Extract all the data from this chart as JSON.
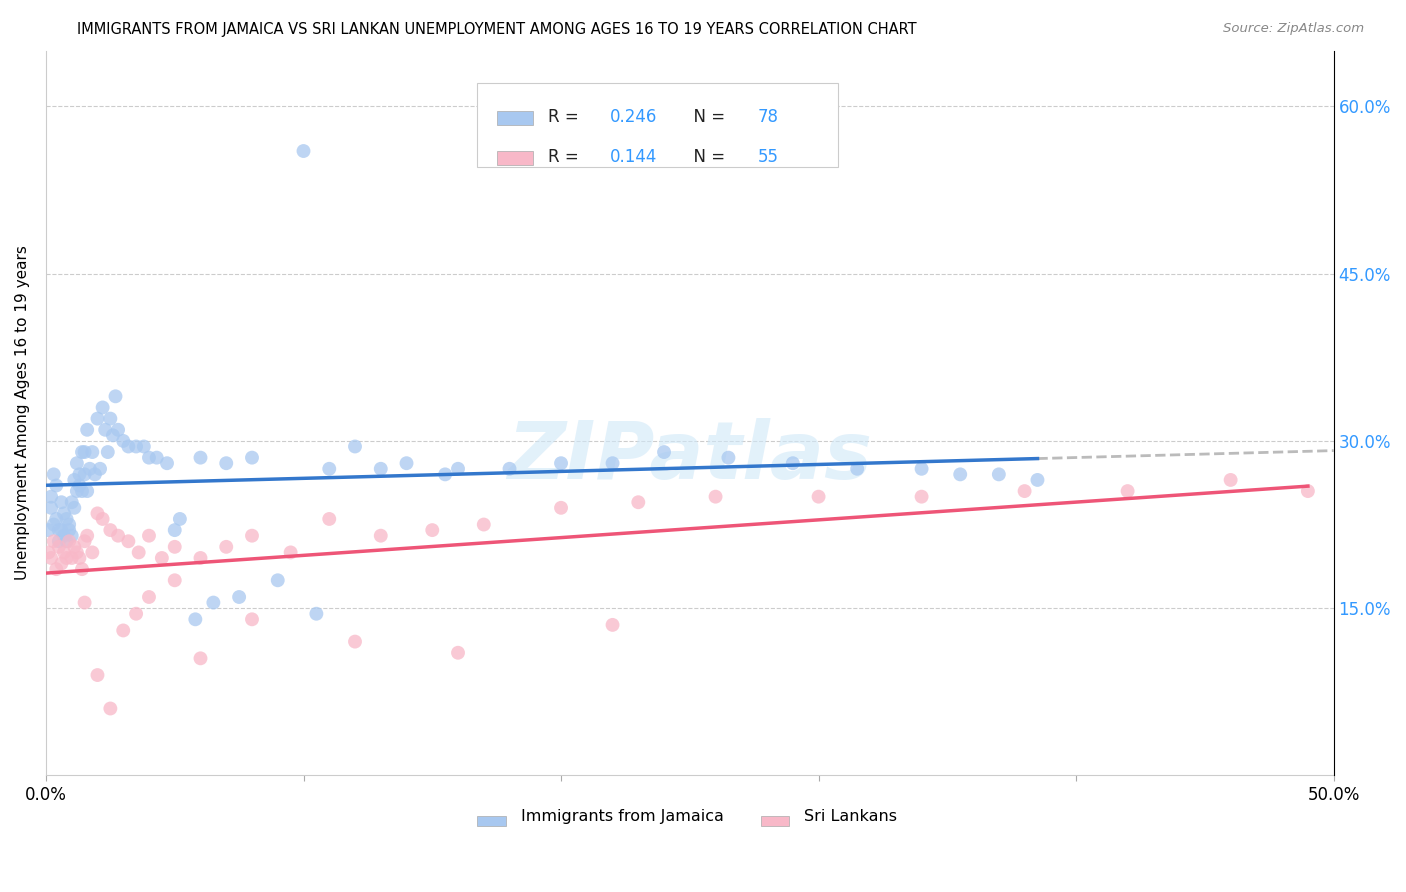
{
  "title": "IMMIGRANTS FROM JAMAICA VS SRI LANKAN UNEMPLOYMENT AMONG AGES 16 TO 19 YEARS CORRELATION CHART",
  "source": "Source: ZipAtlas.com",
  "ylabel": "Unemployment Among Ages 16 to 19 years",
  "xlim": [
    0.0,
    0.5
  ],
  "ylim": [
    0.0,
    0.65
  ],
  "jamaica_color": "#a8c8f0",
  "srilanka_color": "#f8b8c8",
  "jamaica_line_color": "#3377cc",
  "srilanka_line_color": "#ee5577",
  "regression_ext_color": "#bbbbbb",
  "legend_jamaica": "Immigrants from Jamaica",
  "legend_srilanka": "Sri Lankans",
  "watermark": "ZIPatlas",
  "jamaica_x": [
    0.001,
    0.002,
    0.002,
    0.003,
    0.003,
    0.004,
    0.004,
    0.005,
    0.005,
    0.006,
    0.006,
    0.007,
    0.007,
    0.008,
    0.008,
    0.009,
    0.009,
    0.01,
    0.01,
    0.011,
    0.011,
    0.012,
    0.012,
    0.013,
    0.013,
    0.014,
    0.014,
    0.015,
    0.015,
    0.016,
    0.016,
    0.017,
    0.018,
    0.019,
    0.02,
    0.021,
    0.022,
    0.023,
    0.024,
    0.025,
    0.026,
    0.027,
    0.028,
    0.03,
    0.032,
    0.035,
    0.038,
    0.04,
    0.043,
    0.047,
    0.052,
    0.058,
    0.065,
    0.075,
    0.09,
    0.105,
    0.12,
    0.14,
    0.16,
    0.18,
    0.2,
    0.22,
    0.24,
    0.265,
    0.29,
    0.315,
    0.34,
    0.355,
    0.37,
    0.385,
    0.1,
    0.11,
    0.13,
    0.155,
    0.05,
    0.06,
    0.07,
    0.08
  ],
  "jamaica_y": [
    0.22,
    0.25,
    0.24,
    0.27,
    0.225,
    0.26,
    0.23,
    0.22,
    0.21,
    0.245,
    0.22,
    0.235,
    0.215,
    0.23,
    0.21,
    0.225,
    0.22,
    0.245,
    0.215,
    0.265,
    0.24,
    0.28,
    0.255,
    0.27,
    0.26,
    0.29,
    0.255,
    0.29,
    0.27,
    0.31,
    0.255,
    0.275,
    0.29,
    0.27,
    0.32,
    0.275,
    0.33,
    0.31,
    0.29,
    0.32,
    0.305,
    0.34,
    0.31,
    0.3,
    0.295,
    0.295,
    0.295,
    0.285,
    0.285,
    0.28,
    0.23,
    0.14,
    0.155,
    0.16,
    0.175,
    0.145,
    0.295,
    0.28,
    0.275,
    0.275,
    0.28,
    0.28,
    0.29,
    0.285,
    0.28,
    0.275,
    0.275,
    0.27,
    0.27,
    0.265,
    0.56,
    0.275,
    0.275,
    0.27,
    0.22,
    0.285,
    0.28,
    0.285
  ],
  "srilanka_x": [
    0.001,
    0.002,
    0.003,
    0.004,
    0.005,
    0.006,
    0.007,
    0.008,
    0.009,
    0.01,
    0.011,
    0.012,
    0.013,
    0.014,
    0.015,
    0.016,
    0.018,
    0.02,
    0.022,
    0.025,
    0.028,
    0.032,
    0.036,
    0.04,
    0.045,
    0.05,
    0.06,
    0.07,
    0.08,
    0.095,
    0.11,
    0.13,
    0.15,
    0.17,
    0.2,
    0.23,
    0.26,
    0.3,
    0.34,
    0.38,
    0.42,
    0.46,
    0.49,
    0.015,
    0.02,
    0.025,
    0.03,
    0.035,
    0.04,
    0.05,
    0.06,
    0.08,
    0.12,
    0.16,
    0.22
  ],
  "srilanka_y": [
    0.2,
    0.195,
    0.21,
    0.185,
    0.205,
    0.19,
    0.2,
    0.195,
    0.21,
    0.195,
    0.205,
    0.2,
    0.195,
    0.185,
    0.21,
    0.215,
    0.2,
    0.235,
    0.23,
    0.22,
    0.215,
    0.21,
    0.2,
    0.215,
    0.195,
    0.205,
    0.195,
    0.205,
    0.215,
    0.2,
    0.23,
    0.215,
    0.22,
    0.225,
    0.24,
    0.245,
    0.25,
    0.25,
    0.25,
    0.255,
    0.255,
    0.265,
    0.255,
    0.155,
    0.09,
    0.06,
    0.13,
    0.145,
    0.16,
    0.175,
    0.105,
    0.14,
    0.12,
    0.11,
    0.135
  ]
}
